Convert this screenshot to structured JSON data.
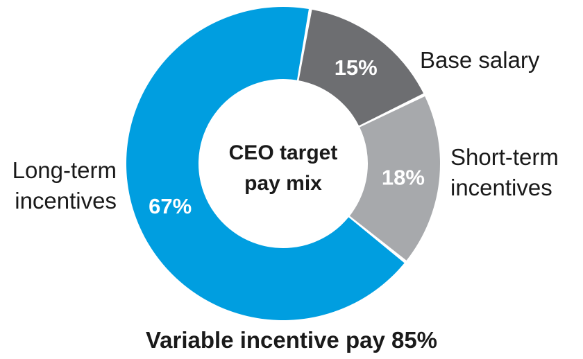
{
  "chart_data": {
    "type": "pie",
    "donut": true,
    "center_title_line1": "CEO target",
    "center_title_line2": "pay mix",
    "slices": [
      {
        "label_lines": [
          "Base salary"
        ],
        "value": 15,
        "value_label": "15%",
        "color": "#6d6e71"
      },
      {
        "label_lines": [
          "Short-term",
          "incentives"
        ],
        "value": 18,
        "value_label": "18%",
        "color": "#a7a9ac"
      },
      {
        "label_lines": [
          "Long-term",
          "incentives"
        ],
        "value": 67,
        "value_label": "67%",
        "color": "#009ee0"
      }
    ],
    "footer": "Variable incentive pay 85%"
  }
}
